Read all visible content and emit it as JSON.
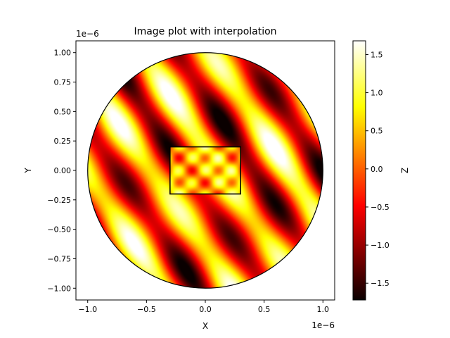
{
  "chart_data": {
    "type": "heatmap",
    "title": "Image plot with interpolation",
    "xlabel": "X",
    "ylabel": "Y",
    "x_offset_label": "1e−6",
    "y_offset_label": "1e−6",
    "xlim": [
      -1.1,
      1.1
    ],
    "ylim": [
      -1.1,
      1.1
    ],
    "x_ticks": [
      -1.0,
      -0.5,
      0.0,
      0.5,
      1.0
    ],
    "x_tick_labels": [
      "−1.0",
      "−0.5",
      "0.0",
      "0.5",
      "1.0"
    ],
    "y_ticks": [
      -1.0,
      -0.75,
      -0.5,
      -0.25,
      0.0,
      0.25,
      0.5,
      0.75,
      1.0
    ],
    "y_tick_labels": [
      "−1.00",
      "−0.75",
      "−0.50",
      "−0.25",
      "0.00",
      "0.25",
      "0.50",
      "0.75",
      "1.00"
    ],
    "grid": false,
    "colormap": "hot",
    "colorbar": {
      "label": "Z",
      "range": [
        -1.72,
        1.68
      ],
      "ticks": [
        -1.5,
        -1.0,
        -0.5,
        0.0,
        0.5,
        1.0,
        1.5
      ],
      "tick_labels": [
        "−1.5",
        "−1.0",
        "−0.5",
        "0.0",
        "0.5",
        "1.0",
        "1.5"
      ]
    },
    "clip_circle": {
      "center": [
        0.0,
        0.0
      ],
      "radius": 1.0
    },
    "rectangle": {
      "x": [
        -0.3,
        0.3
      ],
      "y": [
        -0.2,
        0.2
      ]
    },
    "colors": {
      "frame": "#000000",
      "background": "#ffffff"
    }
  }
}
